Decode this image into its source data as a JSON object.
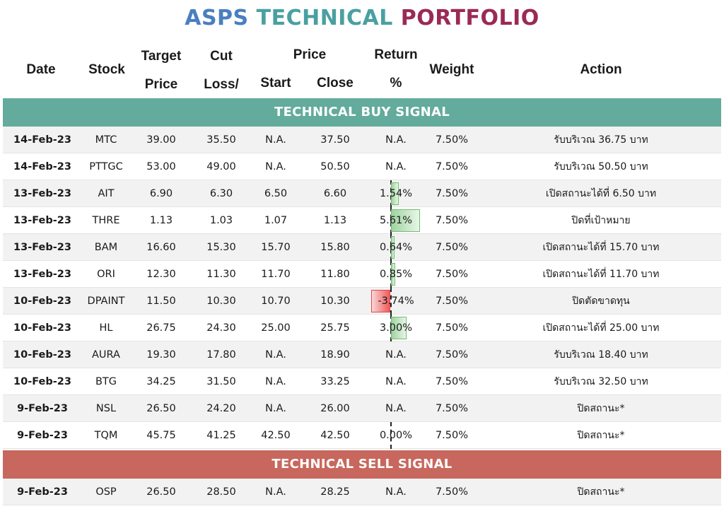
{
  "title": {
    "part1": "ASPS ",
    "part2a": "TECHNI",
    "part2b": "CAL",
    "part3": " PORTFOLIO"
  },
  "headers": {
    "date": "Date",
    "stock": "Stock",
    "target_1": "Target",
    "target_2": "Price",
    "cut_1": "Cut",
    "cut_2": "Loss/",
    "price": "Price",
    "start": "Start",
    "close": "Close",
    "return_1": "Return",
    "return_2": "%",
    "weight": "Weight",
    "action": "Action"
  },
  "sections": {
    "buy_label": "TECHNICAL BUY SIGNAL",
    "sell_label": "TECHNICAL SELL SIGNAL"
  },
  "buy_rows": [
    {
      "date": "14-Feb-23",
      "stock": "MTC",
      "target": "39.00",
      "cut": "35.50",
      "start": "N.A.",
      "close": "37.50",
      "ret": "N.A.",
      "weight": "7.50%",
      "action": "รับบริเวณ 36.75 บาท",
      "ret_value": null
    },
    {
      "date": "14-Feb-23",
      "stock": "PTTGC",
      "target": "53.00",
      "cut": "49.00",
      "start": "N.A.",
      "close": "50.50",
      "ret": "N.A.",
      "weight": "7.50%",
      "action": "รับบริเวณ 50.50 บาท",
      "ret_value": null
    },
    {
      "date": "13-Feb-23",
      "stock": "AIT",
      "target": "6.90",
      "cut": "6.30",
      "start": "6.50",
      "close": "6.60",
      "ret": "1.54%",
      "weight": "7.50%",
      "action": "เปิดสถานะได้ที่ 6.50 บาท",
      "ret_value": 1.54
    },
    {
      "date": "13-Feb-23",
      "stock": "THRE",
      "target": "1.13",
      "cut": "1.03",
      "start": "1.07",
      "close": "1.13",
      "ret": "5.61%",
      "weight": "7.50%",
      "action": "ปิดที่เป้าหมาย",
      "ret_value": 5.61
    },
    {
      "date": "13-Feb-23",
      "stock": "BAM",
      "target": "16.60",
      "cut": "15.30",
      "start": "15.70",
      "close": "15.80",
      "ret": "0.64%",
      "weight": "7.50%",
      "action": "เปิดสถานะได้ที่ 15.70 บาท",
      "ret_value": 0.64
    },
    {
      "date": "13-Feb-23",
      "stock": "ORI",
      "target": "12.30",
      "cut": "11.30",
      "start": "11.70",
      "close": "11.80",
      "ret": "0.85%",
      "weight": "7.50%",
      "action": "เปิดสถานะได้ที่ 11.70 บาท",
      "ret_value": 0.85
    },
    {
      "date": "10-Feb-23",
      "stock": "DPAINT",
      "target": "11.50",
      "cut": "10.30",
      "start": "10.70",
      "close": "10.30",
      "ret": "-3.74%",
      "weight": "7.50%",
      "action": "ปิดตัดขาดทุน",
      "ret_value": -3.74
    },
    {
      "date": "10-Feb-23",
      "stock": "HL",
      "target": "26.75",
      "cut": "24.30",
      "start": "25.00",
      "close": "25.75",
      "ret": "3.00%",
      "weight": "7.50%",
      "action": "เปิดสถานะได้ที่ 25.00 บาท",
      "ret_value": 3.0
    },
    {
      "date": "10-Feb-23",
      "stock": "AURA",
      "target": "19.30",
      "cut": "17.80",
      "start": "N.A.",
      "close": "18.90",
      "ret": "N.A.",
      "weight": "7.50%",
      "action": "รับบริเวณ 18.40 บาท",
      "ret_value": null
    },
    {
      "date": "10-Feb-23",
      "stock": "BTG",
      "target": "34.25",
      "cut": "31.50",
      "start": "N.A.",
      "close": "33.25",
      "ret": "N.A.",
      "weight": "7.50%",
      "action": "รับบริเวณ 32.50 บาท",
      "ret_value": null
    },
    {
      "date": "9-Feb-23",
      "stock": "NSL",
      "target": "26.50",
      "cut": "24.20",
      "start": "N.A.",
      "close": "26.00",
      "ret": "N.A.",
      "weight": "7.50%",
      "action": "ปิดสถานะ*",
      "ret_value": null
    },
    {
      "date": "9-Feb-23",
      "stock": "TQM",
      "target": "45.75",
      "cut": "41.25",
      "start": "42.50",
      "close": "42.50",
      "ret": "0.00%",
      "weight": "7.50%",
      "action": "ปิดสถานะ*",
      "ret_value": 0.0
    }
  ],
  "sell_rows": [
    {
      "date": "9-Feb-23",
      "stock": "OSP",
      "target": "26.50",
      "cut": "28.50",
      "start": "N.A.",
      "close": "28.25",
      "ret": "N.A.",
      "weight": "7.50%",
      "action": "ปิดสถานะ*",
      "ret_value": null
    }
  ],
  "colors": {
    "buy_band": "#63ab9c",
    "sell_band": "#c8675d",
    "positive_bar": "#9fd49f",
    "negative_bar": "#ef5b5b"
  }
}
